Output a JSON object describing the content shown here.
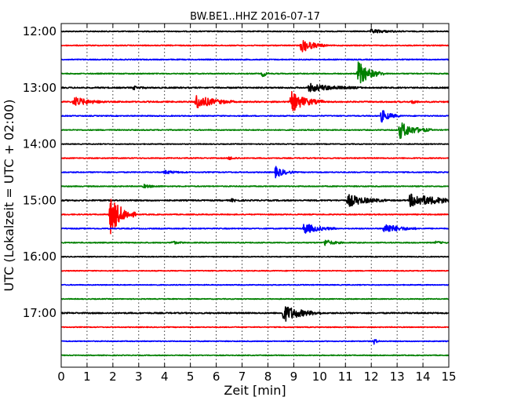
{
  "chart_data": {
    "type": "line",
    "title": "BW.BE1..HHZ 2016-07-17",
    "xlabel": "Zeit  [min]",
    "ylabel": "UTC (Lokalzeit = UTC + 02:00)",
    "xlim": [
      0,
      15
    ],
    "x_ticks": [
      "0",
      "1",
      "2",
      "3",
      "4",
      "5",
      "6",
      "7",
      "8",
      "9",
      "10",
      "11",
      "12",
      "13",
      "14",
      "15"
    ],
    "hour_labels": [
      "12:00",
      "13:00",
      "14:00",
      "15:00",
      "16:00",
      "17:00"
    ],
    "grid": true,
    "trace_colors": [
      "#000000",
      "#ff0000",
      "#0000ff",
      "#008000"
    ],
    "traces": [
      {
        "start": "12:00",
        "noise": 0.6,
        "events": [
          {
            "t": 12.0,
            "amp": 2.5,
            "dur": 0.5
          }
        ]
      },
      {
        "start": "12:15",
        "noise": 0.6,
        "events": [
          {
            "t": 9.3,
            "amp": 9,
            "dur": 0.4
          }
        ]
      },
      {
        "start": "12:30",
        "noise": 0.6,
        "events": []
      },
      {
        "start": "12:45",
        "noise": 0.6,
        "events": [
          {
            "t": 7.8,
            "amp": 5,
            "dur": 0.1
          },
          {
            "t": 11.5,
            "amp": 16,
            "dur": 0.4
          }
        ]
      },
      {
        "start": "13:00",
        "noise": 0.8,
        "events": [
          {
            "t": 2.8,
            "amp": 2,
            "dur": 0.2
          },
          {
            "t": 9.6,
            "amp": 5,
            "dur": 0.8
          }
        ]
      },
      {
        "start": "13:15",
        "noise": 0.8,
        "events": [
          {
            "t": 0.5,
            "amp": 6,
            "dur": 0.5
          },
          {
            "t": 5.2,
            "amp": 9,
            "dur": 0.6
          },
          {
            "t": 8.9,
            "amp": 13,
            "dur": 0.5
          },
          {
            "t": 13.6,
            "amp": 3,
            "dur": 0.1
          }
        ]
      },
      {
        "start": "13:30",
        "noise": 0.6,
        "events": [
          {
            "t": 12.4,
            "amp": 8,
            "dur": 0.3
          }
        ]
      },
      {
        "start": "13:45",
        "noise": 0.6,
        "events": [
          {
            "t": 13.1,
            "amp": 11,
            "dur": 0.5
          }
        ]
      },
      {
        "start": "14:00",
        "noise": 0.5,
        "events": []
      },
      {
        "start": "14:15",
        "noise": 0.6,
        "events": [
          {
            "t": 6.5,
            "amp": 2,
            "dur": 0.2
          }
        ]
      },
      {
        "start": "14:30",
        "noise": 0.6,
        "events": [
          {
            "t": 4.0,
            "amp": 2,
            "dur": 0.4
          },
          {
            "t": 8.3,
            "amp": 7,
            "dur": 0.3
          }
        ]
      },
      {
        "start": "14:45",
        "noise": 0.6,
        "events": [
          {
            "t": 3.2,
            "amp": 2,
            "dur": 0.3
          }
        ]
      },
      {
        "start": "15:00",
        "noise": 0.8,
        "events": [
          {
            "t": 6.6,
            "amp": 1.5,
            "dur": 0.2
          },
          {
            "t": 11.1,
            "amp": 8,
            "dur": 0.6
          },
          {
            "t": 13.5,
            "amp": 8,
            "dur": 1.2
          }
        ]
      },
      {
        "start": "15:15",
        "noise": 0.6,
        "events": [
          {
            "t": 1.9,
            "amp": 25,
            "dur": 0.4
          }
        ]
      },
      {
        "start": "15:30",
        "noise": 0.6,
        "events": [
          {
            "t": 9.4,
            "amp": 7,
            "dur": 0.5
          },
          {
            "t": 12.5,
            "amp": 7,
            "dur": 0.5
          }
        ]
      },
      {
        "start": "15:45",
        "noise": 0.6,
        "events": [
          {
            "t": 4.3,
            "amp": 2,
            "dur": 0.2
          },
          {
            "t": 10.2,
            "amp": 4,
            "dur": 0.3
          },
          {
            "t": 14.5,
            "amp": 1.5,
            "dur": 0.2
          }
        ]
      },
      {
        "start": "16:00",
        "noise": 0.5,
        "events": []
      },
      {
        "start": "16:15",
        "noise": 0.5,
        "events": []
      },
      {
        "start": "16:30",
        "noise": 0.5,
        "events": []
      },
      {
        "start": "16:45",
        "noise": 0.5,
        "events": []
      },
      {
        "start": "17:00",
        "noise": 0.8,
        "events": [
          {
            "t": 8.6,
            "amp": 11,
            "dur": 0.6
          }
        ]
      },
      {
        "start": "17:15",
        "noise": 0.5,
        "events": []
      },
      {
        "start": "17:30",
        "noise": 0.5,
        "events": [
          {
            "t": 12.1,
            "amp": 4,
            "dur": 0.1
          }
        ]
      },
      {
        "start": "17:45",
        "noise": 0.5,
        "events": []
      }
    ]
  }
}
